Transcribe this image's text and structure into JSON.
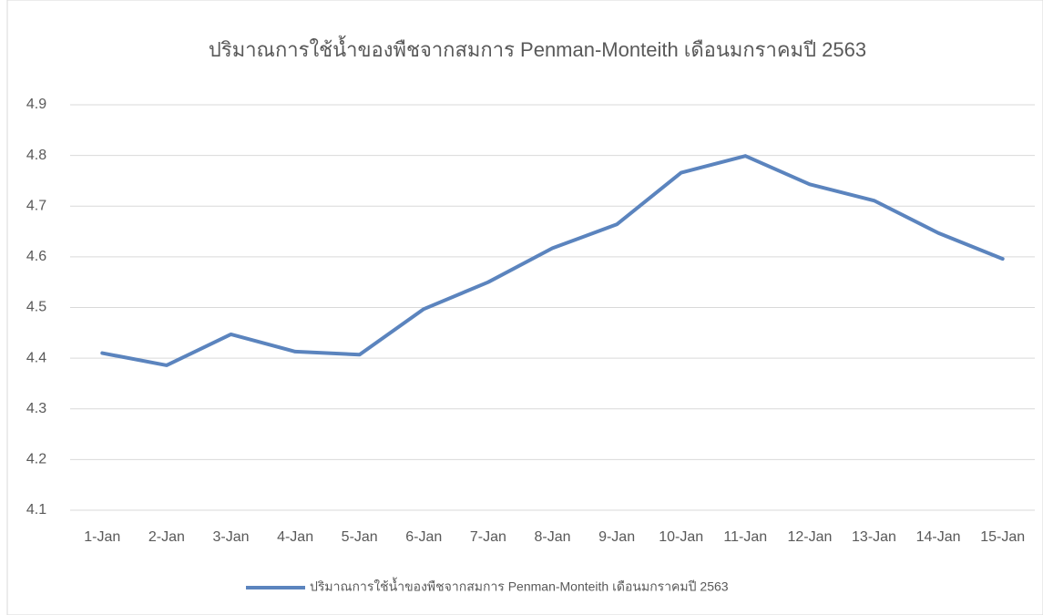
{
  "chart_data": {
    "type": "line",
    "title": "ปริมาณการใช้น้ำของพืชจากสมการ Penman-Monteith เดือนมกราคมปี 2563",
    "categories": [
      "1-Jan",
      "2-Jan",
      "3-Jan",
      "4-Jan",
      "5-Jan",
      "6-Jan",
      "7-Jan",
      "8-Jan",
      "9-Jan",
      "10-Jan",
      "11-Jan",
      "12-Jan",
      "13-Jan",
      "14-Jan",
      "15-Jan"
    ],
    "series": [
      {
        "name": "ปริมาณการใช้น้ำของพืชจากสมการ Penman-Monteith เดือนมกราคมปี 2563",
        "color": "#5b84be",
        "values": [
          4.41,
          4.386,
          4.447,
          4.413,
          4.407,
          4.497,
          4.55,
          4.617,
          4.664,
          4.766,
          4.799,
          4.743,
          4.711,
          4.647,
          4.596
        ]
      }
    ],
    "ylim": [
      4.1,
      4.9
    ],
    "yticks": [
      4.1,
      4.2,
      4.3,
      4.4,
      4.5,
      4.6,
      4.7,
      4.8,
      4.9
    ],
    "grid": true,
    "legend": "bottom"
  }
}
